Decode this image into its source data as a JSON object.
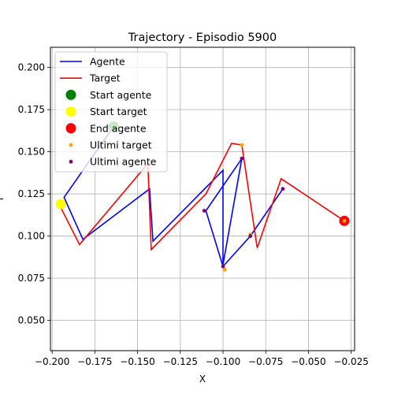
{
  "chart_data": {
    "type": "line",
    "title": "Trajectory - Episodio 5900",
    "xlabel": "X",
    "ylabel": "Y",
    "xlim": [
      -0.201,
      -0.023
    ],
    "ylim": [
      0.032,
      0.212
    ],
    "xticks": [
      -0.2,
      -0.175,
      -0.15,
      -0.125,
      -0.1,
      -0.075,
      -0.05,
      -0.025
    ],
    "xtick_labels": [
      "−0.200",
      "−0.175",
      "−0.150",
      "−0.125",
      "−0.100",
      "−0.075",
      "−0.050",
      "−0.025"
    ],
    "yticks": [
      0.05,
      0.075,
      0.1,
      0.125,
      0.15,
      0.175,
      0.2
    ],
    "ytick_labels": [
      "0.050",
      "0.075",
      "0.100",
      "0.125",
      "0.150",
      "0.175",
      "0.200"
    ],
    "grid": true,
    "legend_position": "top-left",
    "series": [
      {
        "name": "Agente",
        "kind": "line",
        "color": "#0000ff",
        "x": [
          -0.164,
          -0.193,
          -0.182,
          -0.143,
          -0.141,
          -0.1,
          -0.1,
          -0.089,
          -0.11,
          -0.1,
          -0.084,
          -0.065
        ],
        "y": [
          0.165,
          0.123,
          0.098,
          0.128,
          0.097,
          0.139,
          0.083,
          0.146,
          0.115,
          0.082,
          0.1,
          0.128
        ]
      },
      {
        "name": "Target",
        "kind": "line",
        "color": "#ff0000",
        "x": [
          -0.195,
          -0.184,
          -0.144,
          -0.142,
          -0.11,
          -0.095,
          -0.089,
          -0.08,
          -0.066,
          -0.029
        ],
        "y": [
          0.117,
          0.095,
          0.143,
          0.092,
          0.125,
          0.155,
          0.154,
          0.093,
          0.134,
          0.109
        ]
      },
      {
        "name": "Start agente",
        "kind": "scatter",
        "color": "#008000",
        "size": "large",
        "x": [
          -0.164
        ],
        "y": [
          0.165
        ]
      },
      {
        "name": "Start target",
        "kind": "scatter",
        "color": "#ffff00",
        "size": "large",
        "x": [
          -0.195
        ],
        "y": [
          0.119
        ]
      },
      {
        "name": "End agente",
        "kind": "scatter",
        "color": "#ff0000",
        "size": "large",
        "x": [
          -0.029
        ],
        "y": [
          0.109
        ]
      },
      {
        "name": "Ultimi target",
        "kind": "scatter",
        "color": "#ffa500",
        "size": "small",
        "x": [
          -0.089,
          -0.099,
          -0.084,
          -0.029
        ],
        "y": [
          0.154,
          0.08,
          0.101,
          0.109
        ]
      },
      {
        "name": "Ultimi agente",
        "kind": "scatter",
        "color": "#800080",
        "size": "small",
        "x": [
          -0.089,
          -0.111,
          -0.1,
          -0.084,
          -0.065
        ],
        "y": [
          0.146,
          0.115,
          0.082,
          0.1,
          0.128
        ]
      }
    ]
  }
}
